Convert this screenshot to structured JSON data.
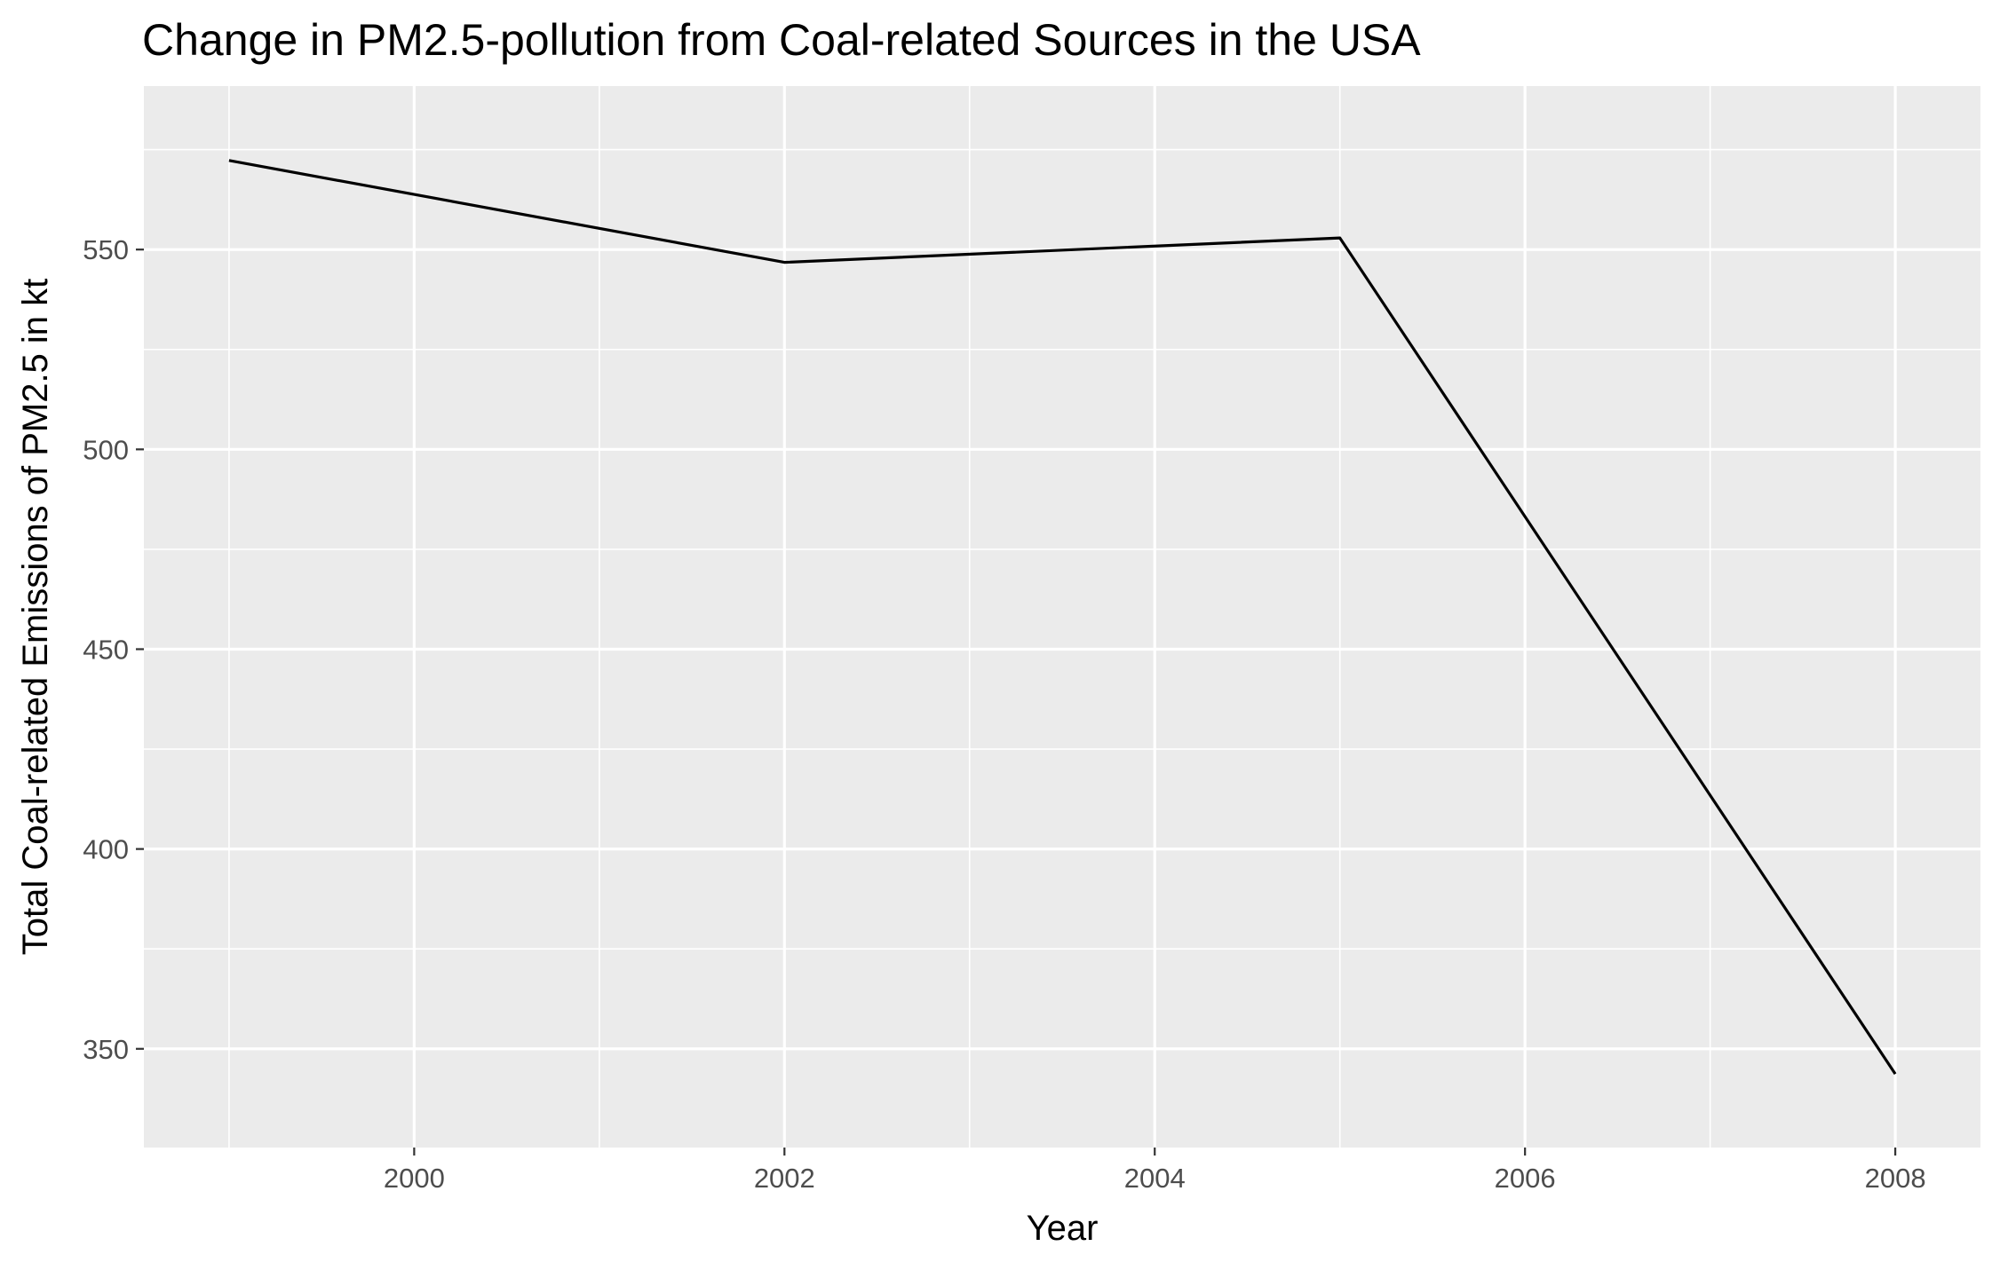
{
  "chart_data": {
    "type": "line",
    "title": "Change in PM2.5-pollution from Coal-related Sources in the USA",
    "xlabel": "Year",
    "ylabel": "Total Coal-related Emissions of PM2.5 in kt",
    "x": [
      1999,
      2002,
      2005,
      2008
    ],
    "series": [
      {
        "values": [
          572.3,
          546.8,
          552.9,
          343.7
        ]
      }
    ],
    "xlim": [
      1998.54,
      2008.46
    ],
    "ylim": [
      325.3,
      590.9
    ],
    "xticks": [
      2000,
      2002,
      2004,
      2006,
      2008
    ],
    "xtick_labels": [
      "2000",
      "2002",
      "2004",
      "2006",
      "2008"
    ],
    "xminor": [
      1999,
      2001,
      2003,
      2005,
      2007
    ],
    "yticks": [
      350,
      400,
      450,
      500,
      550
    ],
    "ytick_labels": [
      "350",
      "400",
      "450",
      "500",
      "550"
    ],
    "yminor": [
      375,
      425,
      475,
      525,
      575
    ],
    "grid": true,
    "legend": "none",
    "colors": {
      "panel_background": "#ebebeb",
      "grid_major": "#ffffff",
      "grid_minor": "#ffffff",
      "line": "#000000",
      "tick_label": "#4d4d4d",
      "tick_mark": "#333333"
    }
  }
}
